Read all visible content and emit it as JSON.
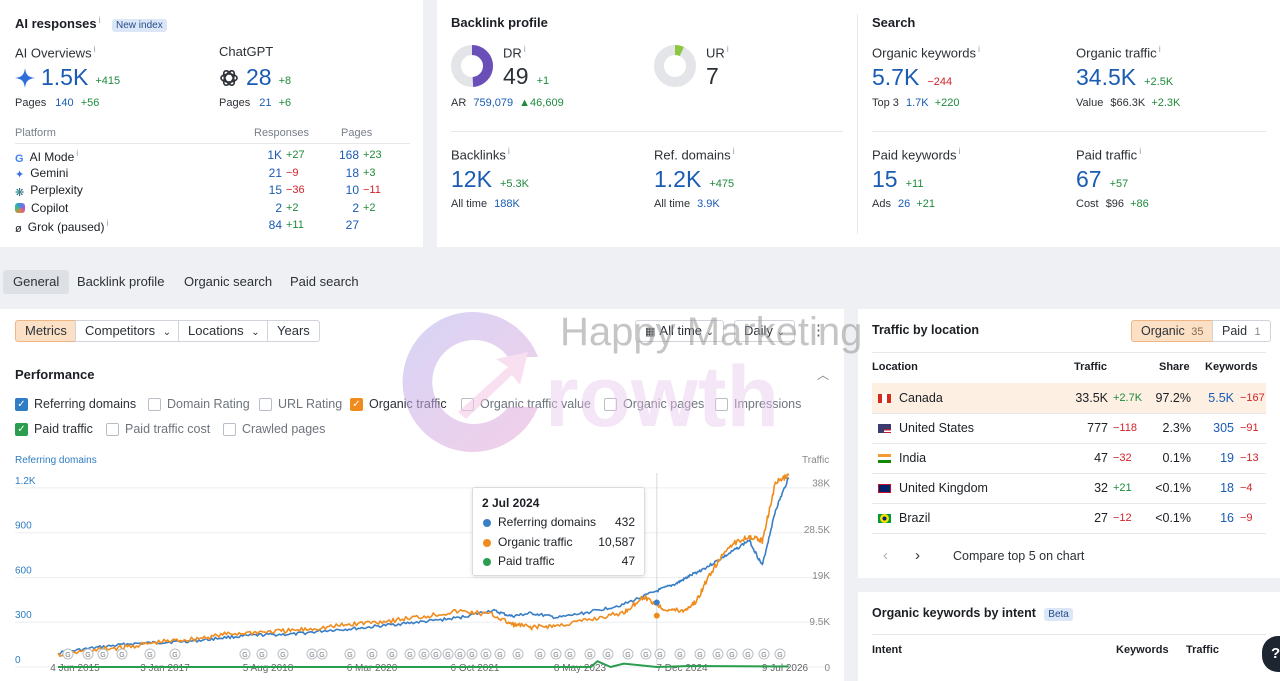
{
  "ai": {
    "title": "AI responses",
    "badge": "New index",
    "overviews": {
      "label": "AI Overviews",
      "value": "1.5K",
      "delta": "+415",
      "pages_label": "Pages",
      "pages": "140",
      "pages_delta": "+56"
    },
    "chatgpt": {
      "label": "ChatGPT",
      "value": "28",
      "delta": "+8",
      "pages_label": "Pages",
      "pages": "21",
      "pages_delta": "+6"
    },
    "headers": {
      "platform": "Platform",
      "responses": "Responses",
      "pages": "Pages"
    },
    "platforms": [
      {
        "name": "AI Mode",
        "resp": "1K",
        "resp_d": "+27",
        "pages": "168",
        "pages_d": "+23",
        "icon": "google-icon"
      },
      {
        "name": "Gemini",
        "resp": "21",
        "resp_d": "−9",
        "pages": "18",
        "pages_d": "+3",
        "icon": "gemini-icon"
      },
      {
        "name": "Perplexity",
        "resp": "15",
        "resp_d": "−36",
        "pages": "10",
        "pages_d": "−11",
        "icon": "perplexity-icon"
      },
      {
        "name": "Copilot",
        "resp": "2",
        "resp_d": "+2",
        "pages": "2",
        "pages_d": "+2",
        "icon": "copilot-icon"
      },
      {
        "name": "Grok (paused)",
        "resp": "84",
        "resp_d": "+11",
        "pages": "27",
        "pages_d": "",
        "icon": "grok-icon"
      }
    ]
  },
  "backlink": {
    "title": "Backlink profile",
    "dr": {
      "label": "DR",
      "value": "49",
      "delta": "+1",
      "ratio": 0.49
    },
    "ur": {
      "label": "UR",
      "value": "7",
      "ratio": 0.07
    },
    "ar": {
      "label": "AR",
      "value": "759,079",
      "delta": "▲46,609"
    },
    "backlinks": {
      "label": "Backlinks",
      "value": "12K",
      "delta": "+5.3K",
      "sub_label": "All time",
      "sub": "188K"
    },
    "refdomains": {
      "label": "Ref. domains",
      "value": "1.2K",
      "delta": "+475",
      "sub_label": "All time",
      "sub": "3.9K"
    }
  },
  "search": {
    "title": "Search",
    "org_kw": {
      "label": "Organic keywords",
      "value": "5.7K",
      "delta": "−244",
      "sub_label": "Top 3",
      "sub": "1.7K",
      "sub_delta": "+220"
    },
    "org_tr": {
      "label": "Organic traffic",
      "value": "34.5K",
      "delta": "+2.5K",
      "sub_label": "Value",
      "sub": "$66.3K",
      "sub_delta": "+2.3K"
    },
    "paid_kw": {
      "label": "Paid keywords",
      "value": "15",
      "delta": "+11",
      "sub_label": "Ads",
      "sub": "26",
      "sub_delta": "+21"
    },
    "paid_tr": {
      "label": "Paid traffic",
      "value": "67",
      "delta": "+57",
      "sub_label": "Cost",
      "sub": "$96",
      "sub_delta": "+86"
    }
  },
  "tabs": [
    "General",
    "Backlink profile",
    "Organic search",
    "Paid search"
  ],
  "controls": {
    "segments": [
      "Metrics",
      "Competitors",
      "Locations",
      "Years"
    ],
    "time": "All time",
    "interval": "Daily"
  },
  "performance": {
    "title": "Performance",
    "checks": [
      {
        "label": "Referring domains",
        "on": true
      },
      {
        "label": "Domain Rating",
        "on": false
      },
      {
        "label": "URL Rating",
        "on": false
      },
      {
        "label": "Organic traffic",
        "on": true
      },
      {
        "label": "Organic traffic value",
        "on": false
      },
      {
        "label": "Organic pages",
        "on": false
      },
      {
        "label": "Impressions",
        "on": false
      },
      {
        "label": "Paid traffic",
        "on": true
      },
      {
        "label": "Paid traffic cost",
        "on": false
      },
      {
        "label": "Crawled pages",
        "on": false
      }
    ],
    "left_axis_title": "Referring domains",
    "right_axis_title": "Traffic"
  },
  "chart_data": {
    "type": "line",
    "left_ticks": [
      "0",
      "300",
      "600",
      "900",
      "1.2K"
    ],
    "right_ticks": [
      "9.5K",
      "19K",
      "28.5K",
      "38K"
    ],
    "x_ticks": [
      "4 Jun 2015",
      "3 Jan 2017",
      "5 Aug 2018",
      "6 Mar 2020",
      "6 Oct 2021",
      "8 May 2023",
      "7 Dec 2024",
      "9 Jul 2026"
    ],
    "ylim_left": [
      0,
      1300
    ],
    "ylim_right": [
      0,
      40000
    ],
    "xlim": [
      2015.42,
      2026.52
    ],
    "series": [
      {
        "name": "Referring domains",
        "axis": "left",
        "color": "#3a7fc6",
        "x": [
          2015.42,
          2016.0,
          2016.5,
          2017.0,
          2017.5,
          2018.0,
          2018.5,
          2019.0,
          2019.5,
          2020.0,
          2020.5,
          2021.0,
          2021.5,
          2022.0,
          2022.3,
          2022.6,
          2023.0,
          2023.5,
          2024.0,
          2024.5,
          2024.8,
          2025.0,
          2025.3,
          2025.6,
          2025.9,
          2026.1,
          2026.3,
          2026.5
        ],
        "y": [
          95,
          130,
          155,
          165,
          175,
          200,
          215,
          220,
          245,
          260,
          285,
          305,
          330,
          380,
          340,
          360,
          330,
          370,
          420,
          510,
          560,
          610,
          680,
          760,
          850,
          680,
          1050,
          1270
        ]
      },
      {
        "name": "Organic traffic",
        "axis": "right",
        "color": "#f08c1e",
        "x": [
          2015.42,
          2016.0,
          2016.5,
          2017.0,
          2017.5,
          2018.0,
          2018.5,
          2019.0,
          2019.5,
          2020.0,
          2020.5,
          2021.0,
          2021.5,
          2022.0,
          2022.3,
          2022.6,
          2023.0,
          2023.5,
          2024.0,
          2024.3,
          2024.6,
          2024.9,
          2025.1,
          2025.3,
          2025.6,
          2025.9,
          2026.1,
          2026.3,
          2026.5
        ],
        "y": [
          2500,
          3500,
          4200,
          5200,
          5800,
          6800,
          7200,
          7500,
          8200,
          9000,
          9600,
          10500,
          11500,
          10800,
          8800,
          8200,
          8500,
          9800,
          11200,
          14500,
          12000,
          11500,
          13500,
          19000,
          25000,
          27000,
          26000,
          38000,
          39500
        ]
      },
      {
        "name": "Paid traffic",
        "axis": "right",
        "color": "#2a9d4f",
        "x": [
          2015.42,
          2018.0,
          2020.0,
          2022.0,
          2023.0,
          2023.5,
          2023.6,
          2023.8,
          2024.0,
          2024.5,
          2025.0,
          2026.5
        ],
        "y": [
          0,
          0,
          0,
          0,
          0,
          0,
          1200,
          0,
          700,
          0,
          200,
          100
        ]
      }
    ],
    "tooltip": {
      "date": "2 Jul 2024",
      "rows": [
        {
          "name": "Referring domains",
          "value": "432",
          "color": "#3a7fc6"
        },
        {
          "name": "Organic traffic",
          "value": "10,587",
          "color": "#f08c1e"
        },
        {
          "name": "Paid traffic",
          "value": "47",
          "color": "#2a9d4f"
        }
      ]
    }
  },
  "location": {
    "title": "Traffic by location",
    "toggle": [
      {
        "label": "Organic",
        "count": "35"
      },
      {
        "label": "Paid",
        "count": "1"
      }
    ],
    "headers": [
      "Location",
      "Traffic",
      "Share",
      "Keywords"
    ],
    "rows": [
      {
        "name": "Canada",
        "traffic": "33.5K",
        "delta": "+2.7K",
        "share": "97.2%",
        "kw": "5.5K",
        "kw_delta": "−167",
        "flag": "canada-flag-icon"
      },
      {
        "name": "United States",
        "traffic": "777",
        "delta": "−118",
        "share": "2.3%",
        "kw": "305",
        "kw_delta": "−91",
        "flag": "us-flag-icon"
      },
      {
        "name": "India",
        "traffic": "47",
        "delta": "−32",
        "share": "0.1%",
        "kw": "19",
        "kw_delta": "−13",
        "flag": "india-flag-icon"
      },
      {
        "name": "United Kingdom",
        "traffic": "32",
        "delta": "+21",
        "share": "<0.1%",
        "kw": "18",
        "kw_delta": "−4",
        "flag": "uk-flag-icon"
      },
      {
        "name": "Brazil",
        "traffic": "27",
        "delta": "−12",
        "share": "<0.1%",
        "kw": "16",
        "kw_delta": "−9",
        "flag": "brazil-flag-icon"
      }
    ],
    "compare": "Compare top 5 on chart"
  },
  "intent": {
    "title": "Organic keywords by intent",
    "badge": "Beta",
    "headers": [
      "Intent",
      "Keywords",
      "Traffic"
    ]
  },
  "watermark": {
    "line1": "Happy Marketing",
    "line2": "rowth"
  }
}
